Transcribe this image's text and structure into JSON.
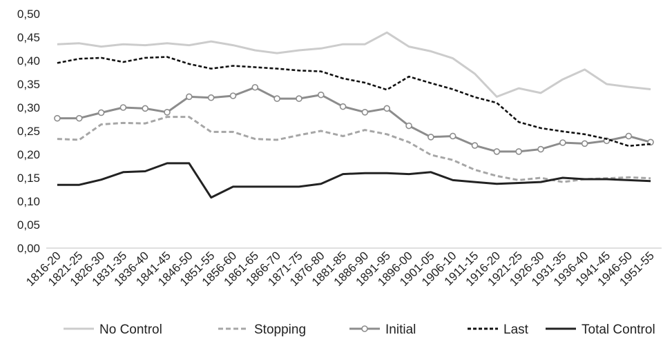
{
  "chart_data": {
    "type": "line",
    "title": "",
    "xlabel": "",
    "ylabel": "",
    "ylim": [
      0,
      0.5
    ],
    "yticks": [
      "0,00",
      "0,05",
      "0,10",
      "0,15",
      "0,20",
      "0,25",
      "0,30",
      "0,35",
      "0,40",
      "0,45",
      "0,50"
    ],
    "grid": false,
    "legend_position": "bottom",
    "categories": [
      "1816-20",
      "1821-25",
      "1826-30",
      "1831-35",
      "1836-40",
      "1841-45",
      "1846-50",
      "1851-55",
      "1856-60",
      "1861-65",
      "1866-70",
      "1871-75",
      "1876-80",
      "1881-85",
      "1886-90",
      "1891-95",
      "1896-00",
      "1901-05",
      "1906-10",
      "1911-15",
      "1916-20",
      "1921-25",
      "1926-30",
      "1931-35",
      "1936-40",
      "1941-45",
      "1946-50",
      "1951-55"
    ],
    "series": [
      {
        "name": "No Control",
        "color": "#cccccc",
        "dash": "solid",
        "marker": "none",
        "values": [
          0.435,
          0.437,
          0.43,
          0.435,
          0.433,
          0.437,
          0.433,
          0.441,
          0.433,
          0.422,
          0.416,
          0.422,
          0.426,
          0.435,
          0.435,
          0.46,
          0.43,
          0.42,
          0.405,
          0.372,
          0.323,
          0.341,
          0.331,
          0.36,
          0.381,
          0.35,
          0.344,
          0.339
        ]
      },
      {
        "name": "Stopping",
        "color": "#a6a6a6",
        "dash": "dashed",
        "marker": "none",
        "values": [
          0.233,
          0.231,
          0.264,
          0.267,
          0.266,
          0.28,
          0.28,
          0.248,
          0.248,
          0.233,
          0.231,
          0.241,
          0.25,
          0.239,
          0.252,
          0.243,
          0.226,
          0.199,
          0.188,
          0.167,
          0.154,
          0.145,
          0.15,
          0.141,
          0.147,
          0.149,
          0.151,
          0.149
        ]
      },
      {
        "name": "Initial",
        "color": "#8c8c8c",
        "dash": "solid",
        "marker": "circle",
        "values": [
          0.277,
          0.277,
          0.289,
          0.3,
          0.298,
          0.29,
          0.323,
          0.321,
          0.325,
          0.343,
          0.319,
          0.319,
          0.327,
          0.302,
          0.29,
          0.298,
          0.261,
          0.237,
          0.239,
          0.219,
          0.206,
          0.206,
          0.211,
          0.225,
          0.223,
          0.229,
          0.239,
          0.226
        ]
      },
      {
        "name": "Last",
        "color": "#111111",
        "dash": "dotted",
        "marker": "none",
        "values": [
          0.395,
          0.404,
          0.406,
          0.397,
          0.406,
          0.408,
          0.393,
          0.383,
          0.389,
          0.386,
          0.383,
          0.379,
          0.377,
          0.362,
          0.353,
          0.338,
          0.366,
          0.352,
          0.339,
          0.322,
          0.31,
          0.269,
          0.256,
          0.249,
          0.243,
          0.233,
          0.218,
          0.222
        ]
      },
      {
        "name": "Total Control",
        "color": "#222222",
        "dash": "solid",
        "marker": "none",
        "values": [
          0.135,
          0.135,
          0.146,
          0.162,
          0.164,
          0.181,
          0.181,
          0.108,
          0.131,
          0.131,
          0.131,
          0.131,
          0.137,
          0.158,
          0.16,
          0.16,
          0.158,
          0.162,
          0.145,
          0.141,
          0.137,
          0.139,
          0.141,
          0.15,
          0.147,
          0.147,
          0.145,
          0.143
        ]
      }
    ]
  }
}
